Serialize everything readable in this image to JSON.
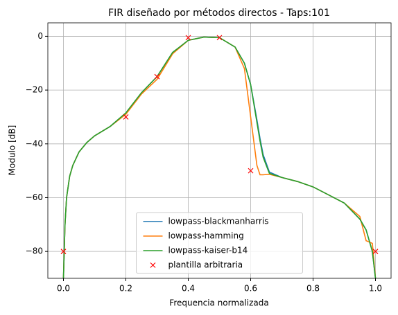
{
  "chart_data": {
    "type": "line",
    "title": "FIR diseñado por métodos directos - Taps:101",
    "xlabel": "Frequencia normalizada",
    "ylabel": "Modulo [dB]",
    "x": [
      0,
      0.005,
      0.01,
      0.02,
      0.03,
      0.05,
      0.075,
      0.1,
      0.15,
      0.2,
      0.25,
      0.3,
      0.35,
      0.4,
      0.45,
      0.5,
      0.55,
      0.58,
      0.6,
      0.62,
      0.63,
      0.64,
      0.66,
      0.7,
      0.75,
      0.8,
      0.85,
      0.9,
      0.95,
      0.97,
      0.99,
      1.0
    ],
    "series": [
      {
        "name": "lowpass-blackmanharris",
        "color": "#1f77b4",
        "values": [
          -90,
          -70,
          -60,
          -52,
          -48,
          -43,
          -39.5,
          -37,
          -33.5,
          -28.5,
          -21,
          -15,
          -6,
          -1.5,
          -0.3,
          -0.5,
          -4,
          -10,
          -18,
          -31,
          -38,
          -44,
          -50.5,
          -52.5,
          -54,
          -56,
          -59,
          -62,
          -68,
          -72,
          -80,
          -90
        ]
      },
      {
        "name": "lowpass-hamming",
        "color": "#ff7f0e",
        "values": [
          -90,
          -70,
          -60,
          -52,
          -48,
          -43,
          -39.5,
          -37,
          -33.5,
          -29,
          -21.5,
          -16,
          -6.5,
          -1.5,
          -0.3,
          -0.5,
          -4,
          -12,
          -30,
          -48,
          -51.5,
          -51.5,
          -51.3,
          -52.5,
          -54,
          -56,
          -59,
          -62,
          -67,
          -76,
          -77,
          -90
        ]
      },
      {
        "name": "lowpass-kaiser-b14",
        "color": "#2ca02c",
        "values": [
          -90,
          -70,
          -60,
          -52,
          -48,
          -43,
          -39.5,
          -37,
          -33.5,
          -28.5,
          -21,
          -15,
          -6,
          -1.5,
          -0.3,
          -0.5,
          -4,
          -10,
          -18,
          -32,
          -39,
          -45,
          -51,
          -52.5,
          -54,
          -56,
          -59,
          -62,
          -68,
          -72,
          -80,
          -90
        ]
      },
      {
        "name": "plantilla arbitraria",
        "color": "#ff0000",
        "marker": "x",
        "x": [
          0,
          0.2,
          0.3,
          0.4,
          0.5,
          0.6,
          1.0
        ],
        "values": [
          -80,
          -30,
          -15,
          -0.5,
          -0.5,
          -50,
          -80
        ]
      }
    ],
    "xlim": [
      -0.05,
      1.05
    ],
    "ylim": [
      -90,
      5
    ],
    "xticks": [
      {
        "value": 0,
        "label": "0.0"
      },
      0.2,
      0.4,
      0.6,
      0.8,
      {
        "value": 1,
        "label": "1.0"
      }
    ],
    "yticks": [
      0,
      {
        "value": -20,
        "label": "−20"
      },
      {
        "value": -40,
        "label": "−40"
      },
      {
        "value": -60,
        "label": "−60"
      },
      {
        "value": -80,
        "label": "−80"
      }
    ],
    "grid": true,
    "legend": "lower center"
  }
}
